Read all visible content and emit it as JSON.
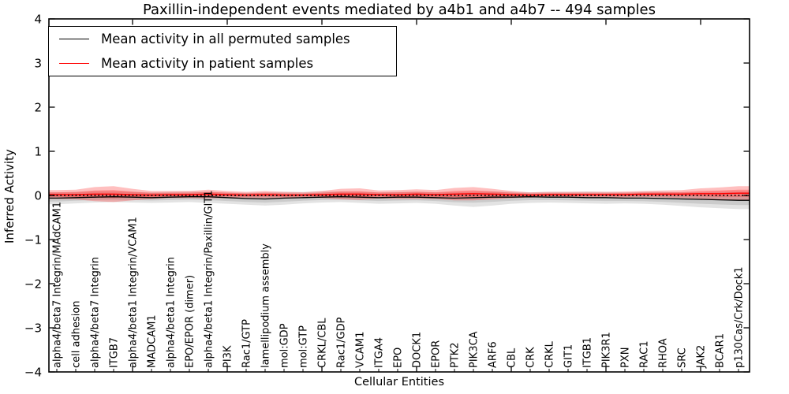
{
  "chart_data": {
    "type": "line",
    "title": "Paxillin-independent events mediated by a4b1 and a4b7 -- 494 samples",
    "xlabel": "Cellular Entities",
    "ylabel": "Inferred Activity",
    "ylim": [
      -4,
      4
    ],
    "yticks": [
      4,
      3,
      2,
      1,
      0,
      -1,
      -2,
      -3,
      -4
    ],
    "ytick_labels": [
      "4",
      "3",
      "2",
      "1",
      "0",
      "−1",
      "−2",
      "−3",
      "−4"
    ],
    "grid": false,
    "legend_position": "upper left",
    "zero_reference_line": {
      "y": 0,
      "style": "dotted",
      "color": "#000000"
    },
    "x_major_tick_indices": [
      4,
      9,
      14,
      19,
      24,
      29,
      34
    ],
    "categories": [
      "alpha4/beta7 Integrin/MAdCAM1",
      "cell adhesion",
      "alpha4/beta7 Integrin",
      "ITGB7",
      "alpha4/beta1 Integrin/VCAM1",
      "MADCAM1",
      "alpha4/beta1 Integrin",
      "EPO/EPOR (dimer)",
      "alpha4/beta1 Integrin/Paxillin/GIT1",
      "PI3K",
      "Rac1/GTP",
      "lamellipodium assembly",
      "mol:GDP",
      "mol:GTP",
      "CRKL/CBL",
      "Rac1/GDP",
      "VCAM1",
      "ITGA4",
      "EPO",
      "DOCK1",
      "EPOR",
      "PTK2",
      "PIK3CA",
      "ARF6",
      "CBL",
      "CRK",
      "CRKL",
      "GIT1",
      "ITGB1",
      "PIK3R1",
      "PXN",
      "RAC1",
      "RHOA",
      "SRC",
      "JAK2",
      "BCAR1",
      "p130Cas/Crk/Dock1"
    ],
    "series": [
      {
        "name": "Mean activity in all permuted samples",
        "color": "#000000",
        "band_color": "#aaaaaa",
        "values": [
          -0.06,
          -0.05,
          -0.04,
          -0.03,
          -0.04,
          -0.05,
          -0.04,
          -0.03,
          -0.03,
          -0.05,
          -0.07,
          -0.08,
          -0.06,
          -0.05,
          -0.04,
          -0.03,
          -0.04,
          -0.05,
          -0.04,
          -0.04,
          -0.05,
          -0.06,
          -0.05,
          -0.04,
          -0.04,
          -0.03,
          -0.04,
          -0.04,
          -0.05,
          -0.05,
          -0.06,
          -0.06,
          -0.07,
          -0.08,
          -0.09,
          -0.1,
          -0.11
        ],
        "band_upper": [
          0.07,
          0.08,
          0.09,
          0.09,
          0.08,
          0.07,
          0.08,
          0.09,
          0.08,
          0.07,
          0.06,
          0.07,
          0.08,
          0.08,
          0.09,
          0.09,
          0.08,
          0.07,
          0.08,
          0.08,
          0.07,
          0.07,
          0.08,
          0.09,
          0.08,
          0.07,
          0.08,
          0.08,
          0.09,
          0.08,
          0.07,
          0.08,
          0.08,
          0.07,
          0.07,
          0.08,
          0.09
        ],
        "band_lower": [
          -0.2,
          -0.18,
          -0.16,
          -0.15,
          -0.16,
          -0.17,
          -0.16,
          -0.15,
          -0.17,
          -0.19,
          -0.21,
          -0.23,
          -0.21,
          -0.18,
          -0.16,
          -0.15,
          -0.17,
          -0.19,
          -0.18,
          -0.17,
          -0.19,
          -0.23,
          -0.26,
          -0.23,
          -0.19,
          -0.17,
          -0.16,
          -0.17,
          -0.18,
          -0.19,
          -0.18,
          -0.19,
          -0.21,
          -0.24,
          -0.27,
          -0.29,
          -0.31
        ]
      },
      {
        "name": "Mean activity in patient samples",
        "color": "#ff0000",
        "band_color": "#ff0000",
        "values": [
          0.02,
          0.02,
          0.03,
          0.03,
          0.02,
          0.01,
          0.02,
          0.02,
          0.03,
          0.02,
          0.01,
          0.02,
          0.01,
          0.01,
          0.02,
          0.03,
          0.03,
          0.02,
          0.02,
          0.03,
          0.02,
          0.03,
          0.04,
          0.03,
          0.02,
          0.01,
          0.02,
          0.02,
          0.02,
          0.02,
          0.02,
          0.03,
          0.03,
          0.03,
          0.04,
          0.04,
          0.05
        ],
        "band_halfwidth": [
          0.1,
          0.11,
          0.16,
          0.18,
          0.13,
          0.09,
          0.08,
          0.08,
          0.1,
          0.08,
          0.07,
          0.08,
          0.07,
          0.06,
          0.08,
          0.12,
          0.13,
          0.09,
          0.1,
          0.11,
          0.1,
          0.14,
          0.15,
          0.12,
          0.08,
          0.06,
          0.06,
          0.06,
          0.06,
          0.06,
          0.07,
          0.07,
          0.08,
          0.09,
          0.12,
          0.14,
          0.16
        ]
      }
    ]
  }
}
